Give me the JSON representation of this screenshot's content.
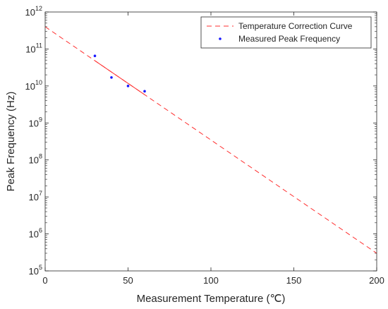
{
  "chart_data": {
    "type": "scatter",
    "title": "",
    "xlabel": "Measurement Temperature (℃)",
    "ylabel": "Peak Frequency (Hz)",
    "xlim": [
      0,
      200
    ],
    "ylim": [
      100000,
      1000000000000
    ],
    "y_scale": "log",
    "grid": false,
    "legend_position": "top-right",
    "x_ticks": [
      {
        "value": 0,
        "label": "0"
      },
      {
        "value": 50,
        "label": "50"
      },
      {
        "value": 100,
        "label": "100"
      },
      {
        "value": 150,
        "label": "150"
      },
      {
        "value": 200,
        "label": "200"
      }
    ],
    "y_ticks": [
      {
        "value": 100000,
        "base": "10",
        "exp": "5"
      },
      {
        "value": 1000000,
        "base": "10",
        "exp": "6"
      },
      {
        "value": 10000000,
        "base": "10",
        "exp": "7"
      },
      {
        "value": 100000000,
        "base": "10",
        "exp": "8"
      },
      {
        "value": 1000000000,
        "base": "10",
        "exp": "9"
      },
      {
        "value": 10000000000,
        "base": "10",
        "exp": "10"
      },
      {
        "value": 100000000000,
        "base": "10",
        "exp": "11"
      },
      {
        "value": 1000000000000,
        "base": "10",
        "exp": "12"
      }
    ],
    "series": [
      {
        "name": "Temperature Correction Curve",
        "kind": "line",
        "style": "dashed",
        "color": "#ff3030",
        "x": [
          0,
          200
        ],
        "y": [
          400000000000,
          300000
        ]
      },
      {
        "name": "Measured Peak Frequency",
        "kind": "scatter",
        "color": "#1a1aff",
        "x": [
          30,
          40,
          50,
          60
        ],
        "y": [
          65000000000,
          17000000000,
          10000000000,
          7200000000
        ]
      }
    ]
  }
}
